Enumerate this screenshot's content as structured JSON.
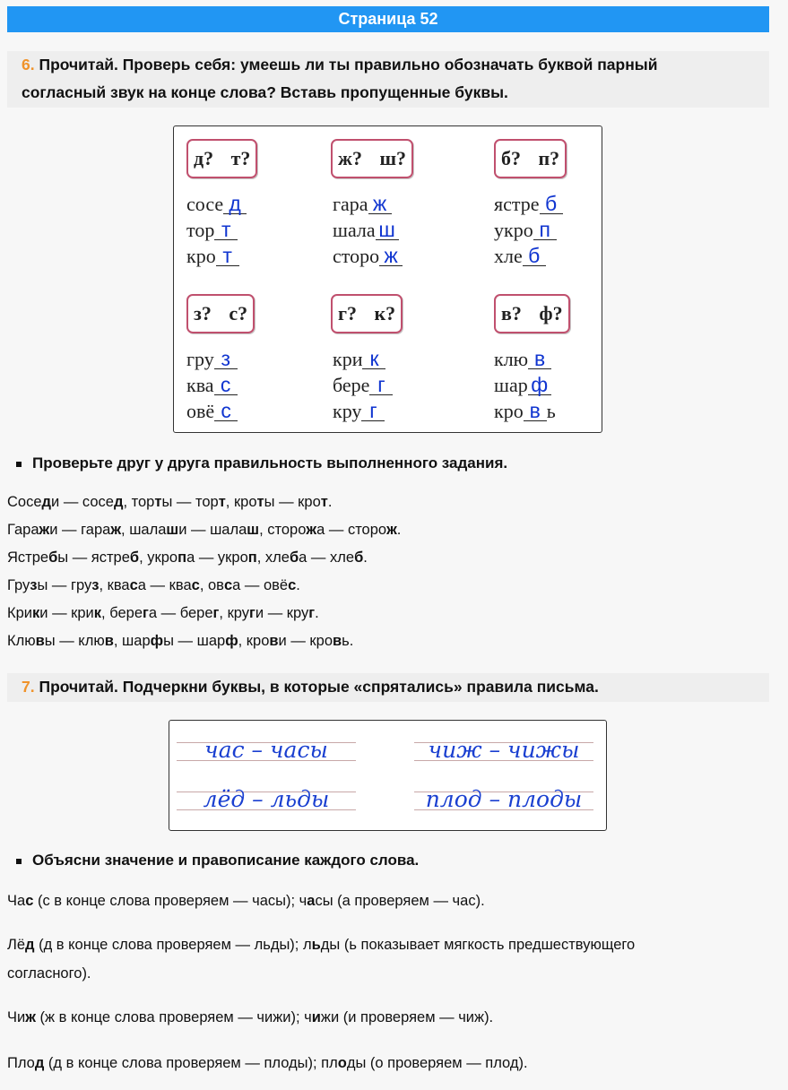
{
  "header": {
    "title": "Страница 52"
  },
  "task6": {
    "number": "6.",
    "text": "Прочитай. Проверь себя: умеешь ли ты правильно обозначать буквой парный",
    "text2": "согласный звук на конце слова? Вставь пропущенные буквы."
  },
  "exercise": {
    "groups": [
      {
        "label": "д? т?",
        "words": [
          [
            "сосе",
            "д"
          ],
          [
            "тор",
            "т"
          ],
          [
            "кро",
            "т"
          ]
        ]
      },
      {
        "label": "ж? ш?",
        "words": [
          [
            "гара",
            "ж"
          ],
          [
            "шала",
            "ш"
          ],
          [
            "сторо",
            "ж"
          ]
        ]
      },
      {
        "label": "б? п?",
        "words": [
          [
            "ястре",
            "б"
          ],
          [
            "укро",
            "п"
          ],
          [
            "хле",
            "б"
          ]
        ]
      },
      {
        "label": "з? с?",
        "words": [
          [
            "гру",
            "з"
          ],
          [
            "ква",
            "с"
          ],
          [
            "овё",
            "с"
          ]
        ]
      },
      {
        "label": "г? к?",
        "words": [
          [
            "кри",
            "к"
          ],
          [
            "бере",
            "г"
          ],
          [
            "кру",
            "г"
          ]
        ]
      },
      {
        "label": "в? ф?",
        "words": [
          [
            "клю",
            "в"
          ],
          [
            "шар",
            "ф"
          ],
          [
            "кро",
            "в",
            "ь"
          ]
        ]
      }
    ]
  },
  "bullet1": "Проверьте друг у друга правильность выполненного задания.",
  "check_lines": [
    [
      [
        "Сосе",
        0
      ],
      [
        "д",
        1
      ],
      [
        "и — сосе",
        0
      ],
      [
        "д",
        1
      ],
      [
        ", тор",
        0
      ],
      [
        "т",
        1
      ],
      [
        "ы — тор",
        0
      ],
      [
        "т",
        1
      ],
      [
        ", кро",
        0
      ],
      [
        "т",
        1
      ],
      [
        "ы — кро",
        0
      ],
      [
        "т",
        1
      ],
      [
        ".",
        0
      ]
    ],
    [
      [
        "Гара",
        0
      ],
      [
        "ж",
        1
      ],
      [
        "и — гара",
        0
      ],
      [
        "ж",
        1
      ],
      [
        ", шала",
        0
      ],
      [
        "ш",
        1
      ],
      [
        "и — шала",
        0
      ],
      [
        "ш",
        1
      ],
      [
        ", сторо",
        0
      ],
      [
        "ж",
        1
      ],
      [
        "а — сторо",
        0
      ],
      [
        "ж",
        1
      ],
      [
        ".",
        0
      ]
    ],
    [
      [
        "Ястре",
        0
      ],
      [
        "б",
        1
      ],
      [
        "ы — ястре",
        0
      ],
      [
        "б",
        1
      ],
      [
        ", укро",
        0
      ],
      [
        "п",
        1
      ],
      [
        "а — укро",
        0
      ],
      [
        "п",
        1
      ],
      [
        ", хле",
        0
      ],
      [
        "б",
        1
      ],
      [
        "а — хле",
        0
      ],
      [
        "б",
        1
      ],
      [
        ".",
        0
      ]
    ],
    [
      [
        "Гру",
        0
      ],
      [
        "з",
        1
      ],
      [
        "ы — гру",
        0
      ],
      [
        "з",
        1
      ],
      [
        ", ква",
        0
      ],
      [
        "с",
        1
      ],
      [
        "а — ква",
        0
      ],
      [
        "с",
        1
      ],
      [
        ", ов",
        0
      ],
      [
        "с",
        1
      ],
      [
        "а — овё",
        0
      ],
      [
        "с",
        1
      ],
      [
        ".",
        0
      ]
    ],
    [
      [
        "Кри",
        0
      ],
      [
        "к",
        1
      ],
      [
        "и — кри",
        0
      ],
      [
        "к",
        1
      ],
      [
        ", бере",
        0
      ],
      [
        "г",
        1
      ],
      [
        "а — бере",
        0
      ],
      [
        "г",
        1
      ],
      [
        ", кру",
        0
      ],
      [
        "г",
        1
      ],
      [
        "и — кру",
        0
      ],
      [
        "г",
        1
      ],
      [
        ".",
        0
      ]
    ],
    [
      [
        "Клю",
        0
      ],
      [
        "в",
        1
      ],
      [
        "ы — клю",
        0
      ],
      [
        "в",
        1
      ],
      [
        ", шар",
        0
      ],
      [
        "ф",
        1
      ],
      [
        "ы — шар",
        0
      ],
      [
        "ф",
        1
      ],
      [
        ", кро",
        0
      ],
      [
        "в",
        1
      ],
      [
        "и — кро",
        0
      ],
      [
        "в",
        1
      ],
      [
        "ь.",
        0
      ]
    ]
  ],
  "task7": {
    "number": "7.",
    "text": "Прочитай. Подчеркни буквы, в которые «спрятались» правила письма."
  },
  "cursive": [
    "час – часы",
    "чиж – чижы",
    "лёд – льды",
    "плод – плоды"
  ],
  "bullet2": "Объясни значение и правописание каждого слова.",
  "explanations": [
    [
      [
        "Ча",
        0
      ],
      [
        "с",
        1
      ],
      [
        " (с в конце слова проверяем — часы); ч",
        0
      ],
      [
        "а",
        1
      ],
      [
        "сы (а проверяем — час).",
        0
      ]
    ],
    [
      [
        "Лё",
        0
      ],
      [
        "д",
        1
      ],
      [
        " (д в конце слова проверяем — льды); л",
        0
      ],
      [
        "ь",
        1
      ],
      [
        "ды (ь показывает мягкость предшествующего",
        0
      ]
    ],
    [
      [
        "согласного).",
        0
      ]
    ],
    [
      [
        "Чи",
        0
      ],
      [
        "ж",
        1
      ],
      [
        " (ж в конце слова проверяем — чижи); ч",
        0
      ],
      [
        "и",
        1
      ],
      [
        "жи (и проверяем — чиж).",
        0
      ]
    ],
    [
      [
        "Пло",
        0
      ],
      [
        "д",
        1
      ],
      [
        " (д в конце слова проверяем — плоды); пл",
        0
      ],
      [
        "о",
        1
      ],
      [
        "ды (о проверяем — плод).",
        0
      ]
    ]
  ],
  "colors": {
    "header": "#2196f3",
    "task_number": "#f0932b",
    "answer": "#1035d0"
  }
}
